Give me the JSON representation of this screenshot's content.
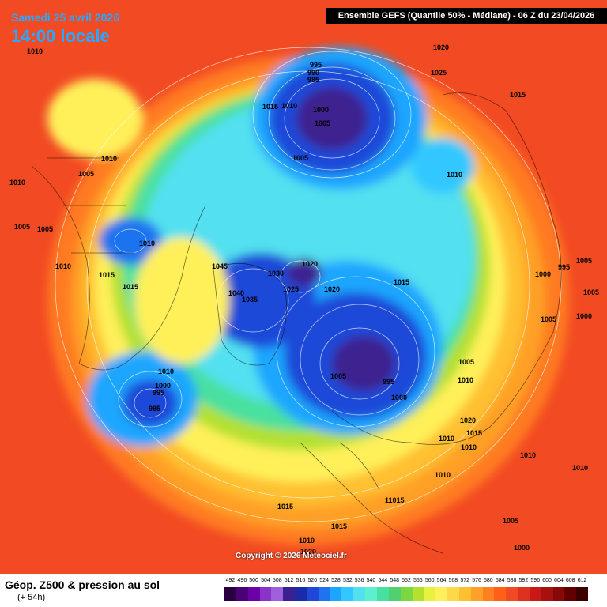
{
  "header": {
    "date": "Samedi 25 avril 2026",
    "local_time": "14:00 locale",
    "model_info": "Ensemble GEFS  (Quantile 50% - Médiane) - 06 Z du 23/04/2026"
  },
  "footer": {
    "title": "Géop. Z500 & pression au sol",
    "subtitle": "(+ 54h)",
    "legend_values": [
      "492",
      "496",
      "500",
      "504",
      "508",
      "512",
      "516",
      "520",
      "524",
      "528",
      "532",
      "536",
      "540",
      "544",
      "548",
      "552",
      "556",
      "560",
      "564",
      "568",
      "572",
      "576",
      "580",
      "584",
      "588",
      "592",
      "596",
      "600",
      "604",
      "608",
      "612"
    ],
    "legend_colors": [
      "#2a0040",
      "#4b0077",
      "#6a00a8",
      "#8a33c8",
      "#a060dd",
      "#3c2090",
      "#1a2aa8",
      "#1f48d8",
      "#1f73f0",
      "#1ea6ff",
      "#32c8ff",
      "#52e0f0",
      "#5cf0d0",
      "#48e0a0",
      "#50d070",
      "#7cd840",
      "#b4e030",
      "#e8f040",
      "#fff05a",
      "#ffd84a",
      "#ffc030",
      "#ffa028",
      "#ff8020",
      "#ff6018",
      "#f24a23",
      "#e03020",
      "#c81818",
      "#a81010",
      "#880808",
      "#600000",
      "#3a0000"
    ]
  },
  "copyright": "Copyright © 2026 Meteociel.fr",
  "pressure_labels": [
    "1010",
    "1020",
    "1025",
    "1015",
    "995",
    "990",
    "985",
    "1015",
    "1010",
    "1000",
    "1005",
    "1005",
    "1010",
    "1010",
    "1010",
    "1005",
    "1005",
    "1005",
    "1010",
    "1010",
    "1015",
    "1015",
    "1045",
    "1020",
    "1030",
    "1025",
    "1020",
    "1015",
    "1040",
    "1035",
    "1005",
    "995",
    "1000",
    "1005",
    "1010",
    "1000",
    "995",
    "1005",
    "1005",
    "1000",
    "1005",
    "1010",
    "1000",
    "995",
    "985",
    "1020",
    "1015",
    "1010",
    "1010",
    "1010",
    "1010",
    "11015",
    "1015",
    "1015",
    "1010",
    "1005",
    "1000",
    "1010",
    "1020"
  ]
}
